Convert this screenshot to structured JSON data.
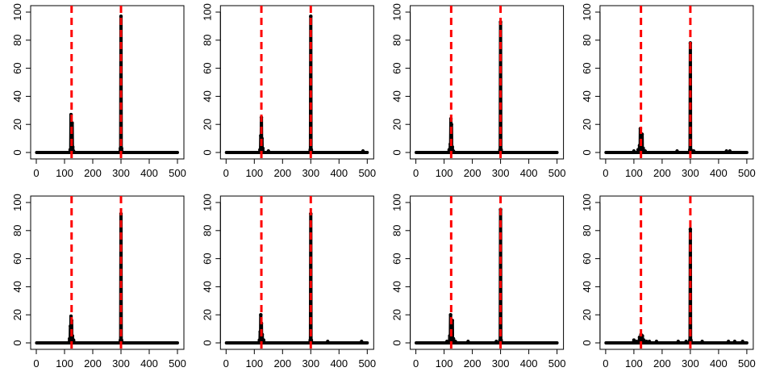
{
  "chart_data": [
    {
      "type": "line",
      "xlim": [
        0,
        500
      ],
      "ylim": [
        0,
        100
      ],
      "xticks": [
        0,
        100,
        200,
        300,
        400,
        500
      ],
      "yticks": [
        0,
        20,
        40,
        60,
        80,
        100
      ],
      "baseline": 0,
      "vlines": [
        125,
        300
      ],
      "vline_color": "#ff0000",
      "line_color": "#000000",
      "nonzero_points": [
        [
          120,
          2
        ],
        [
          123,
          27
        ],
        [
          125,
          20
        ],
        [
          127,
          21
        ],
        [
          129,
          4
        ],
        [
          132,
          1
        ],
        [
          298,
          3
        ],
        [
          300,
          97
        ],
        [
          302,
          3
        ]
      ]
    },
    {
      "type": "line",
      "xlim": [
        0,
        500
      ],
      "ylim": [
        0,
        100
      ],
      "xticks": [
        0,
        100,
        200,
        300,
        400,
        500
      ],
      "yticks": [
        0,
        20,
        40,
        60,
        80,
        100
      ],
      "baseline": 0,
      "vlines": [
        125,
        300
      ],
      "vline_color": "#ff0000",
      "line_color": "#000000",
      "nonzero_points": [
        [
          120,
          2
        ],
        [
          123,
          12
        ],
        [
          125,
          25
        ],
        [
          127,
          10
        ],
        [
          130,
          3
        ],
        [
          150,
          1
        ],
        [
          298,
          2
        ],
        [
          300,
          97
        ],
        [
          302,
          2
        ],
        [
          485,
          1
        ]
      ]
    },
    {
      "type": "line",
      "xlim": [
        0,
        500
      ],
      "ylim": [
        0,
        100
      ],
      "xticks": [
        0,
        100,
        200,
        300,
        400,
        500
      ],
      "yticks": [
        0,
        20,
        40,
        60,
        80,
        100
      ],
      "baseline": 0,
      "vlines": [
        125,
        300
      ],
      "vline_color": "#ff0000",
      "line_color": "#000000",
      "nonzero_points": [
        [
          118,
          2
        ],
        [
          122,
          6
        ],
        [
          124,
          24
        ],
        [
          126,
          20
        ],
        [
          129,
          4
        ],
        [
          133,
          1
        ],
        [
          298,
          2
        ],
        [
          300,
          93
        ],
        [
          302,
          2
        ]
      ]
    },
    {
      "type": "line",
      "xlim": [
        0,
        500
      ],
      "ylim": [
        0,
        100
      ],
      "xticks": [
        0,
        100,
        200,
        300,
        400,
        500
      ],
      "yticks": [
        0,
        20,
        40,
        60,
        80,
        100
      ],
      "baseline": 0,
      "vlines": [
        125,
        300
      ],
      "vline_color": "#ff0000",
      "line_color": "#000000",
      "nonzero_points": [
        [
          100,
          1
        ],
        [
          115,
          2
        ],
        [
          120,
          5
        ],
        [
          123,
          17
        ],
        [
          126,
          12
        ],
        [
          129,
          13
        ],
        [
          133,
          3
        ],
        [
          140,
          1
        ],
        [
          253,
          1
        ],
        [
          298,
          2
        ],
        [
          300,
          78
        ],
        [
          302,
          2
        ],
        [
          312,
          1
        ],
        [
          428,
          1
        ],
        [
          440,
          1
        ]
      ]
    },
    {
      "type": "line",
      "xlim": [
        0,
        500
      ],
      "ylim": [
        0,
        100
      ],
      "xticks": [
        0,
        100,
        200,
        300,
        400,
        500
      ],
      "yticks": [
        0,
        20,
        40,
        60,
        80,
        100
      ],
      "baseline": 0,
      "vlines": [
        125,
        300
      ],
      "vline_color": "#ff0000",
      "line_color": "#000000",
      "nonzero_points": [
        [
          118,
          3
        ],
        [
          121,
          12
        ],
        [
          123,
          19
        ],
        [
          125,
          16
        ],
        [
          128,
          5
        ],
        [
          132,
          2
        ],
        [
          298,
          2
        ],
        [
          300,
          92
        ],
        [
          302,
          2
        ]
      ]
    },
    {
      "type": "line",
      "xlim": [
        0,
        500
      ],
      "ylim": [
        0,
        100
      ],
      "xticks": [
        0,
        100,
        200,
        300,
        400,
        500
      ],
      "yticks": [
        0,
        20,
        40,
        60,
        80,
        100
      ],
      "baseline": 0,
      "vlines": [
        125,
        300
      ],
      "vline_color": "#ff0000",
      "line_color": "#000000",
      "nonzero_points": [
        [
          118,
          2
        ],
        [
          121,
          8
        ],
        [
          123,
          20
        ],
        [
          125,
          14
        ],
        [
          128,
          6
        ],
        [
          133,
          2
        ],
        [
          298,
          2
        ],
        [
          300,
          92
        ],
        [
          302,
          2
        ],
        [
          360,
          1
        ],
        [
          480,
          1
        ]
      ]
    },
    {
      "type": "line",
      "xlim": [
        0,
        500
      ],
      "ylim": [
        0,
        100
      ],
      "xticks": [
        0,
        100,
        200,
        300,
        400,
        500
      ],
      "yticks": [
        0,
        20,
        40,
        60,
        80,
        100
      ],
      "baseline": 0,
      "vlines": [
        125,
        300
      ],
      "vline_color": "#ff0000",
      "line_color": "#000000",
      "nonzero_points": [
        [
          110,
          1
        ],
        [
          120,
          5
        ],
        [
          123,
          20
        ],
        [
          126,
          8
        ],
        [
          129,
          16
        ],
        [
          133,
          3
        ],
        [
          140,
          1
        ],
        [
          185,
          1
        ],
        [
          285,
          1
        ],
        [
          298,
          2
        ],
        [
          300,
          95
        ],
        [
          302,
          2
        ]
      ]
    },
    {
      "type": "line",
      "xlim": [
        0,
        500
      ],
      "ylim": [
        0,
        100
      ],
      "xticks": [
        0,
        100,
        200,
        300,
        400,
        500
      ],
      "yticks": [
        0,
        20,
        40,
        60,
        80,
        100
      ],
      "baseline": 0,
      "vlines": [
        125,
        300
      ],
      "vline_color": "#ff0000",
      "line_color": "#000000",
      "nonzero_points": [
        [
          100,
          2
        ],
        [
          110,
          1
        ],
        [
          120,
          4
        ],
        [
          125,
          6
        ],
        [
          130,
          5
        ],
        [
          135,
          2
        ],
        [
          145,
          1
        ],
        [
          155,
          1
        ],
        [
          180,
          1
        ],
        [
          257,
          1
        ],
        [
          285,
          1
        ],
        [
          298,
          2
        ],
        [
          300,
          81
        ],
        [
          302,
          2
        ],
        [
          342,
          1
        ],
        [
          435,
          1
        ],
        [
          457,
          1
        ],
        [
          485,
          1
        ]
      ]
    }
  ]
}
